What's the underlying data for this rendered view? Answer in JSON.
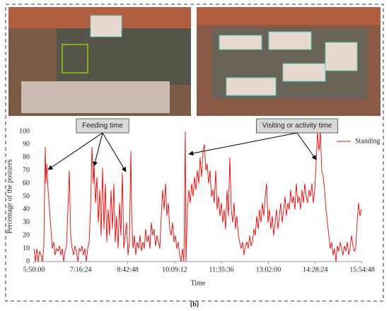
{
  "chart_data": {
    "type": "line",
    "caption": "(b)",
    "xlabel": "Time",
    "ylabel": "Percentage of the postures",
    "xlim": [
      21000,
      57288
    ],
    "xticks": [
      {
        "value": 21000,
        "label": "5:50:00"
      },
      {
        "value": 26184,
        "label": "7:16:24"
      },
      {
        "value": 31368,
        "label": "8:42:48"
      },
      {
        "value": 36552,
        "label": "10:09:12"
      },
      {
        "value": 41736,
        "label": "11:35:36"
      },
      {
        "value": 46920,
        "label": "13:02:00"
      },
      {
        "value": 52104,
        "label": "14:28:24"
      },
      {
        "value": 57288,
        "label": "15:54:48"
      }
    ],
    "ylim": [
      0,
      100
    ],
    "yticks": [
      0,
      10,
      20,
      30,
      40,
      50,
      60,
      70,
      80,
      90,
      100
    ],
    "grid": false,
    "legend": "upper right",
    "annotations": [
      "Feeding time",
      "Visiting or activity time"
    ],
    "x": [
      21000,
      21156,
      21313,
      21469,
      21626,
      21782,
      21938,
      22095,
      22251,
      22329,
      22408,
      22564,
      22720,
      22877,
      23033,
      23190,
      23346,
      23502,
      23659,
      23815,
      23972,
      24128,
      24284,
      24441,
      24597,
      24754,
      24910,
      25066,
      25223,
      25379,
      25536,
      25692,
      25848,
      26005,
      26161,
      26318,
      26474,
      26630,
      26787,
      26943,
      27100,
      27256,
      27412,
      27569,
      27647,
      27803,
      27960,
      28116,
      28273,
      28429,
      28585,
      28742,
      28898,
      29055,
      29211,
      29367,
      29524,
      29680,
      29837,
      29993,
      30149,
      30306,
      30462,
      30619,
      30775,
      30931,
      31088,
      31244,
      31401,
      31557,
      31713,
      31792,
      31948,
      32104,
      32261,
      32417,
      32574,
      32730,
      32886,
      33043,
      33199,
      33356,
      33512,
      33668,
      33825,
      33981,
      34138,
      34294,
      34450,
      34607,
      34763,
      34920,
      35076,
      35232,
      35389,
      35545,
      35702,
      35858,
      36014,
      36171,
      36327,
      36484,
      36640,
      36796,
      36953,
      37109,
      37266,
      37422,
      37578,
      37735,
      37813,
      37969,
      38126,
      38282,
      38438,
      38595,
      38751,
      38908,
      39064,
      39221,
      39377,
      39533,
      39690,
      39846,
      40003,
      40159,
      40315,
      40472,
      40628,
      40785,
      40941,
      41097,
      41254,
      41410,
      41567,
      41723,
      41879,
      42036,
      42192,
      42349,
      42505,
      42661,
      42818,
      42974,
      43131,
      43287,
      43443,
      43600,
      43756,
      43913,
      44069,
      44225,
      44382,
      44538,
      44695,
      44851,
      45007,
      45164,
      45320,
      45477,
      45633,
      45789,
      45946,
      46102,
      46259,
      46415,
      46571,
      46728,
      46884,
      47041,
      47197,
      47353,
      47510,
      47666,
      47823,
      47979,
      48135,
      48292,
      48448,
      48605,
      48761,
      48917,
      49074,
      49230,
      49387,
      49543,
      49699,
      49856,
      50012,
      50169,
      50325,
      50481,
      50638,
      50794,
      50951,
      51107,
      51263,
      51420,
      51576,
      51733,
      51889,
      52045,
      52202,
      52358,
      52515,
      52671,
      52827,
      52984,
      53140,
      53297,
      53453,
      53609,
      53766,
      53922,
      54079,
      54235,
      54391,
      54548,
      54704,
      54861,
      55017,
      55173,
      55330,
      55486,
      55643,
      55799,
      55955,
      56112,
      56268,
      56425,
      56581,
      56737,
      56894,
      57050,
      57207
    ],
    "series": [
      {
        "name": "Standing",
        "color": "#ff0000",
        "values": [
          10,
          0,
          10,
          0,
          8,
          5,
          0,
          12,
          88,
          60,
          75,
          55,
          40,
          25,
          10,
          15,
          5,
          10,
          8,
          12,
          5,
          10,
          0,
          8,
          12,
          40,
          70,
          20,
          10,
          5,
          12,
          8,
          0,
          10,
          8,
          12,
          5,
          10,
          0,
          10,
          15,
          40,
          88,
          60,
          75,
          45,
          65,
          30,
          55,
          20,
          72,
          25,
          60,
          15,
          40,
          20,
          55,
          25,
          60,
          15,
          35,
          10,
          45,
          20,
          68,
          10,
          20,
          30,
          5,
          15,
          85,
          40,
          10,
          20,
          5,
          15,
          10,
          20,
          8,
          15,
          10,
          25,
          15,
          20,
          10,
          30,
          20,
          25,
          12,
          20,
          15,
          10,
          35,
          55,
          40,
          60,
          35,
          45,
          25,
          20,
          30,
          15,
          20,
          10,
          15,
          5,
          0,
          10,
          0,
          100,
          0,
          40,
          55,
          45,
          60,
          50,
          65,
          55,
          70,
          60,
          80,
          65,
          85,
          90,
          70,
          75,
          60,
          70,
          50,
          55,
          45,
          70,
          40,
          50,
          35,
          45,
          30,
          40,
          25,
          55,
          35,
          80,
          40,
          30,
          45,
          25,
          35,
          20,
          15,
          10,
          15,
          5,
          12,
          15,
          10,
          20,
          12,
          15,
          25,
          20,
          35,
          25,
          40,
          30,
          45,
          35,
          50,
          60,
          30,
          40,
          25,
          35,
          20,
          30,
          40,
          25,
          35,
          45,
          30,
          40,
          50,
          35,
          45,
          40,
          55,
          45,
          50,
          40,
          60,
          45,
          50,
          40,
          55,
          45,
          60,
          50,
          45,
          55,
          50,
          60,
          45,
          55,
          75,
          100,
          85,
          100,
          70,
          65,
          55,
          40,
          30,
          20,
          10,
          15,
          5,
          10,
          0,
          12,
          8,
          15,
          10,
          5,
          12,
          8,
          15,
          5,
          10,
          20,
          12,
          8,
          10,
          30,
          45,
          35,
          40
        ]
      }
    ]
  }
}
